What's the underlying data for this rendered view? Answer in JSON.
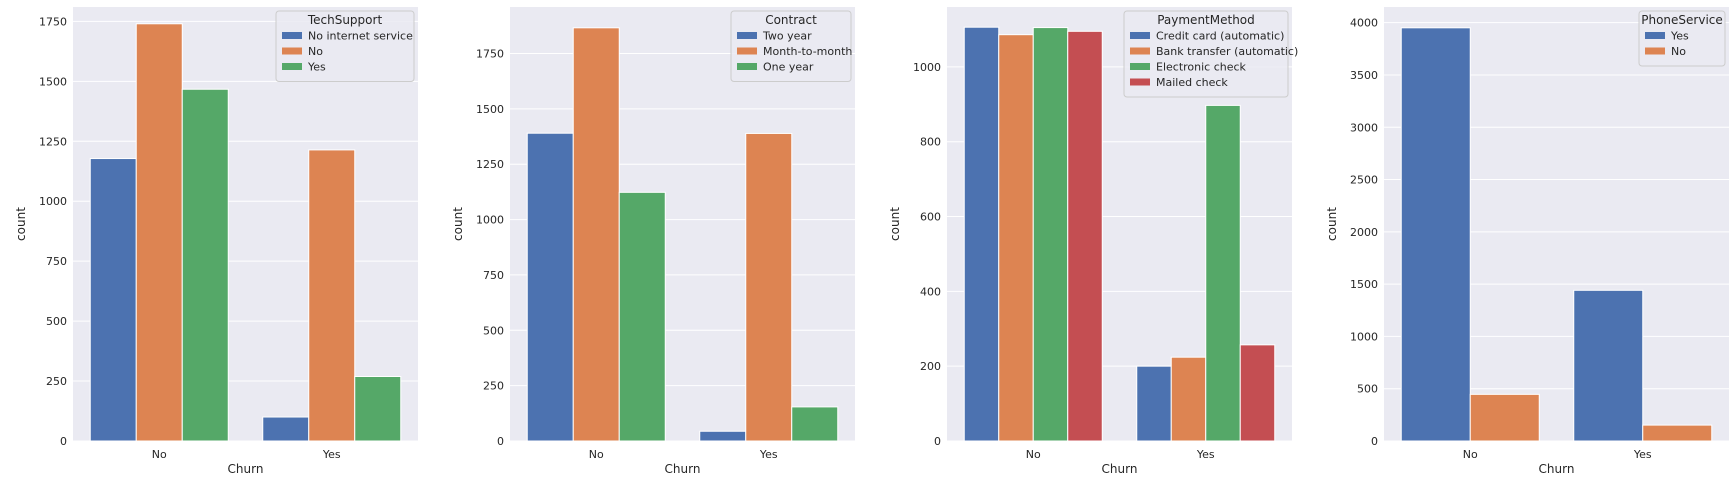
{
  "chart_data": [
    {
      "type": "bar",
      "xlabel": "Churn",
      "ylabel": "count",
      "categories": [
        "No",
        "Yes"
      ],
      "ylim": [
        0,
        1810
      ],
      "yticks": [
        0,
        250,
        500,
        750,
        1000,
        1250,
        1500,
        1750
      ],
      "legend_title": "TechSupport",
      "legend_position": "top-right",
      "grid": true,
      "series": [
        {
          "name": "No internet service",
          "color": "#4c72b0",
          "values": [
            1178,
            100
          ]
        },
        {
          "name": "No",
          "color": "#dd8452",
          "values": [
            1740,
            1214
          ]
        },
        {
          "name": "Yes",
          "color": "#55a868",
          "values": [
            1467,
            269
          ]
        }
      ]
    },
    {
      "type": "bar",
      "xlabel": "Churn",
      "ylabel": "count",
      "categories": [
        "No",
        "Yes"
      ],
      "ylim": [
        0,
        1960
      ],
      "yticks": [
        0,
        250,
        500,
        750,
        1000,
        1250,
        1500,
        1750
      ],
      "legend_title": "Contract",
      "legend_position": "top-right",
      "grid": true,
      "series": [
        {
          "name": "Two year",
          "color": "#4c72b0",
          "values": [
            1390,
            44
          ]
        },
        {
          "name": "Month-to-month",
          "color": "#dd8452",
          "values": [
            1866,
            1389
          ]
        },
        {
          "name": "One year",
          "color": "#55a868",
          "values": [
            1123,
            154
          ]
        }
      ]
    },
    {
      "type": "bar",
      "xlabel": "Churn",
      "ylabel": "count",
      "categories": [
        "No",
        "Yes"
      ],
      "ylim": [
        0,
        1160
      ],
      "yticks": [
        0,
        200,
        400,
        600,
        800,
        1000
      ],
      "legend_title": "PaymentMethod",
      "legend_position": "top-right",
      "grid": true,
      "series": [
        {
          "name": "Credit card (automatic)",
          "color": "#4c72b0",
          "values": [
            1106,
            200
          ]
        },
        {
          "name": "Bank transfer (automatic)",
          "color": "#dd8452",
          "values": [
            1086,
            224
          ]
        },
        {
          "name": "Electronic check",
          "color": "#55a868",
          "values": [
            1105,
            897
          ]
        },
        {
          "name": "Mailed check",
          "color": "#c44e52",
          "values": [
            1095,
            257
          ]
        }
      ]
    },
    {
      "type": "bar",
      "xlabel": "Churn",
      "ylabel": "count",
      "categories": [
        "No",
        "Yes"
      ],
      "ylim": [
        0,
        4150
      ],
      "yticks": [
        0,
        500,
        1000,
        1500,
        2000,
        2500,
        3000,
        3500,
        4000
      ],
      "legend_title": "PhoneService",
      "legend_position": "top-right",
      "grid": true,
      "series": [
        {
          "name": "Yes",
          "color": "#4c72b0",
          "values": [
            3951,
            1441
          ]
        },
        {
          "name": "No",
          "color": "#dd8452",
          "values": [
            446,
            152
          ]
        }
      ]
    }
  ]
}
